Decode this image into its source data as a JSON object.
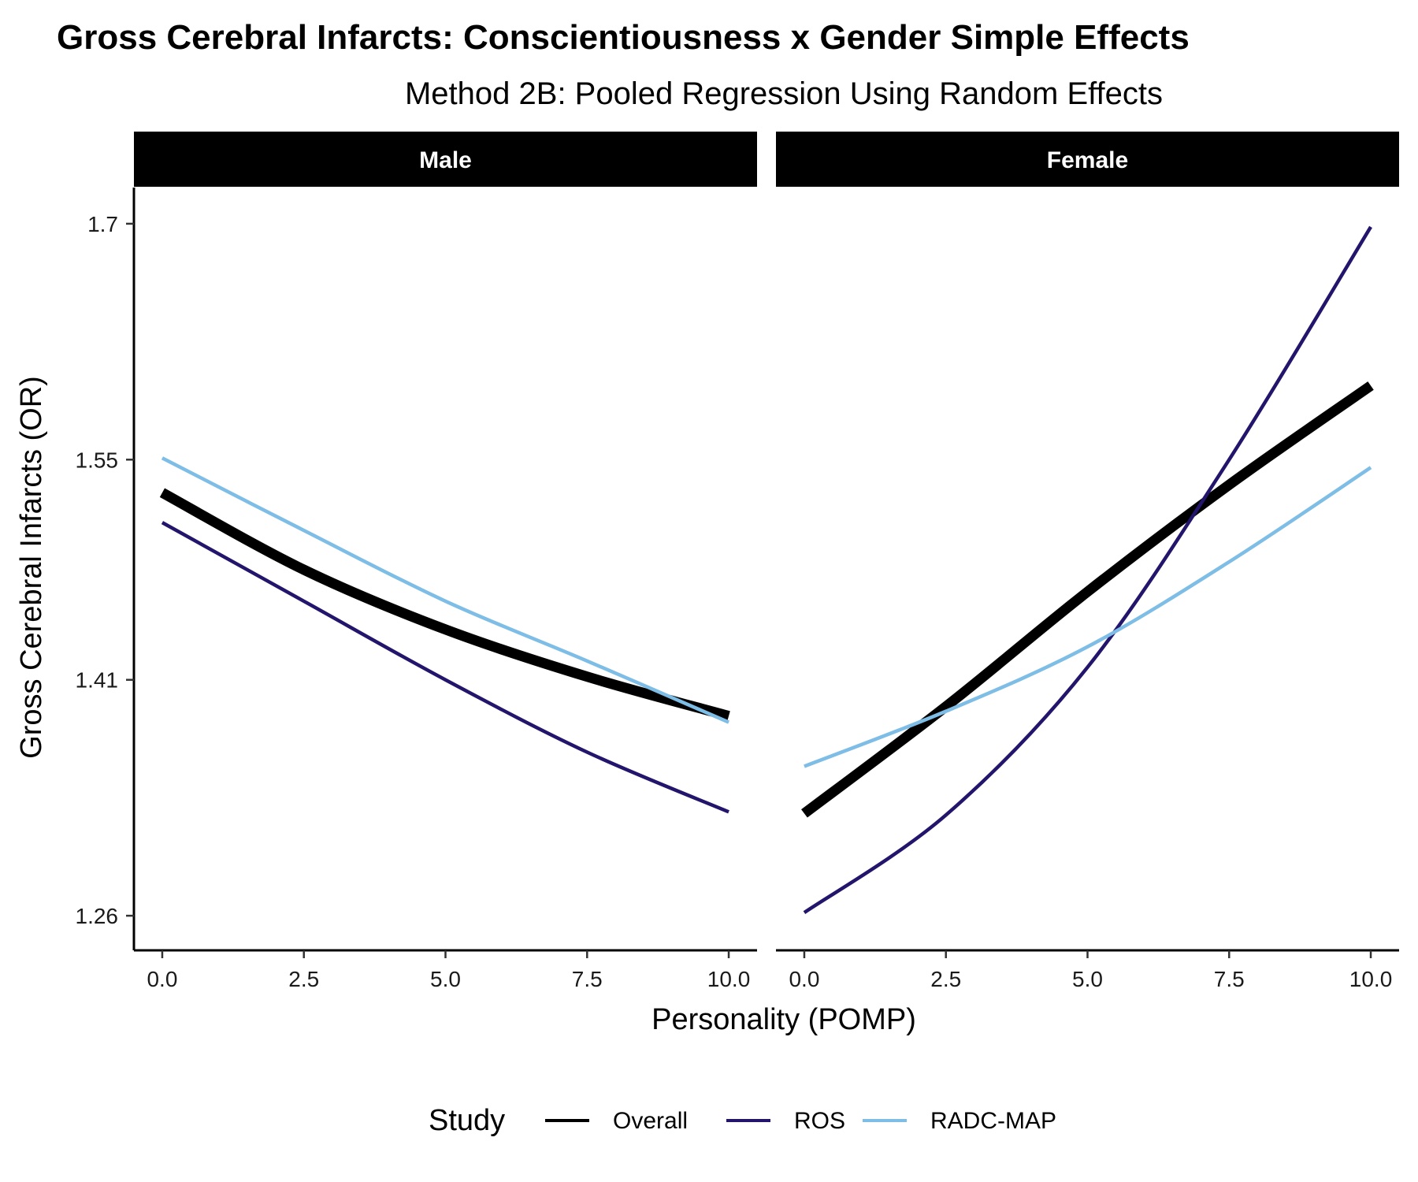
{
  "chart_data": {
    "type": "line",
    "title": "Gross Cerebral Infarcts: Conscientiousness x Gender Simple Effects",
    "subtitle": "Method 2B: Pooled Regression Using Random Effects",
    "xlabel": "Personality (POMP)",
    "ylabel": "Gross Cerebral Infarcts (OR)",
    "xlim": [
      -0.5,
      10.5
    ],
    "ylim": [
      1.238,
      1.723
    ],
    "x_ticks": [
      "0.0",
      "2.5",
      "5.0",
      "7.5",
      "10.0"
    ],
    "y_ticks": [
      "1.26",
      "1.41",
      "1.55",
      "1.7"
    ],
    "grid": false,
    "legend_title": "Study",
    "legend_position": "bottom",
    "colors": {
      "Overall": "#000000",
      "ROS": "#22156b",
      "RADC-MAP": "#7dbde6",
      "strip": "#000000"
    },
    "panels": [
      {
        "label": "Male",
        "series": [
          {
            "name": "Overall",
            "x": [
              0,
              2.5,
              5,
              7.5,
              10
            ],
            "y": [
              1.529,
              1.48,
              1.442,
              1.412,
              1.387
            ]
          },
          {
            "name": "ROS",
            "x": [
              0,
              2.5,
              5,
              7.5,
              10
            ],
            "y": [
              1.51,
              1.46,
              1.41,
              1.364,
              1.326
            ]
          },
          {
            "name": "RADC-MAP",
            "x": [
              0,
              2.5,
              5,
              7.5,
              10
            ],
            "y": [
              1.551,
              1.505,
              1.46,
              1.422,
              1.383
            ]
          }
        ]
      },
      {
        "label": "Female",
        "series": [
          {
            "name": "Overall",
            "x": [
              0,
              2.5,
              5,
              7.5,
              10
            ],
            "y": [
              1.325,
              1.393,
              1.466,
              1.534,
              1.597
            ]
          },
          {
            "name": "ROS",
            "x": [
              0,
              2.5,
              5,
              7.5,
              10
            ],
            "y": [
              1.262,
              1.324,
              1.418,
              1.55,
              1.698
            ]
          },
          {
            "name": "RADC-MAP",
            "x": [
              0,
              2.5,
              5,
              7.5,
              10
            ],
            "y": [
              1.355,
              1.39,
              1.431,
              1.485,
              1.545
            ]
          }
        ]
      }
    ]
  }
}
